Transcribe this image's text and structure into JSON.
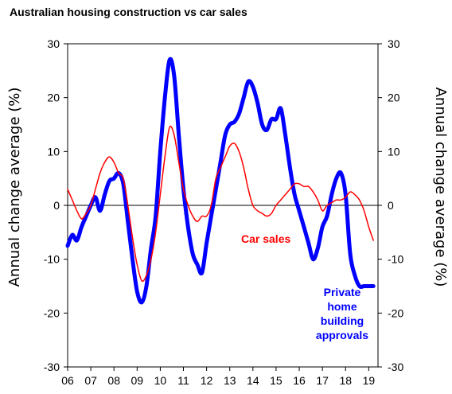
{
  "chart_data": {
    "type": "line",
    "title": "Australian housing construction vs car sales",
    "ylabel_left": "Annual change average (%)",
    "ylabel_right": "Annual change average (%)",
    "ylim": [
      -30,
      30
    ],
    "xlim": [
      2006,
      2019.4
    ],
    "y_ticks": [
      30,
      20,
      10,
      0,
      -10,
      -20,
      -30
    ],
    "x_tick_labels": [
      "06",
      "07",
      "08",
      "09",
      "10",
      "11",
      "12",
      "13",
      "14",
      "15",
      "16",
      "17",
      "18",
      "19"
    ],
    "grid": false,
    "annotations": [
      {
        "text": "Car sales",
        "color": "#ff0000",
        "lines": [
          "Car sales"
        ]
      },
      {
        "text": "Private home building approvals",
        "color": "#0000ff",
        "lines": [
          "Private",
          "home",
          "building",
          "approvals"
        ]
      }
    ],
    "series": [
      {
        "name": "Private home building approvals",
        "color": "#0000ff",
        "x": [
          2006.0,
          2006.2,
          2006.4,
          2006.6,
          2006.8,
          2007.0,
          2007.2,
          2007.4,
          2007.6,
          2007.8,
          2008.0,
          2008.2,
          2008.4,
          2008.6,
          2008.8,
          2009.0,
          2009.2,
          2009.4,
          2009.6,
          2009.8,
          2010.0,
          2010.2,
          2010.4,
          2010.6,
          2010.8,
          2011.0,
          2011.2,
          2011.4,
          2011.6,
          2011.8,
          2012.0,
          2012.2,
          2012.4,
          2012.6,
          2012.8,
          2013.0,
          2013.2,
          2013.4,
          2013.6,
          2013.8,
          2014.0,
          2014.2,
          2014.4,
          2014.6,
          2014.8,
          2015.0,
          2015.2,
          2015.4,
          2015.6,
          2015.8,
          2016.0,
          2016.2,
          2016.4,
          2016.6,
          2016.8,
          2017.0,
          2017.2,
          2017.4,
          2017.6,
          2017.8,
          2018.0,
          2018.2,
          2018.4,
          2018.6,
          2018.8,
          2019.0,
          2019.2
        ],
        "y": [
          -7.5,
          -5.5,
          -6.5,
          -4,
          -2,
          0,
          1.5,
          -1,
          2,
          4.5,
          5,
          6,
          4,
          -3,
          -10,
          -16,
          -18,
          -15,
          -8,
          -2,
          10,
          20,
          27,
          24,
          13,
          3,
          -4,
          -9,
          -11,
          -12.5,
          -7,
          -2,
          3,
          8,
          13,
          15,
          15.5,
          17,
          20,
          23,
          22,
          19,
          15,
          14,
          16,
          16,
          18,
          13,
          7,
          2,
          -1,
          -4,
          -7,
          -10,
          -8,
          -4,
          -2,
          2,
          5,
          6,
          2,
          -9,
          -13,
          -15,
          -15,
          -15,
          -15
        ]
      },
      {
        "name": "Car sales",
        "color": "#ff0000",
        "x": [
          2006.0,
          2006.2,
          2006.4,
          2006.6,
          2006.8,
          2007.0,
          2007.2,
          2007.4,
          2007.6,
          2007.8,
          2008.0,
          2008.2,
          2008.4,
          2008.6,
          2008.8,
          2009.0,
          2009.2,
          2009.4,
          2009.6,
          2009.8,
          2010.0,
          2010.2,
          2010.4,
          2010.6,
          2010.8,
          2011.0,
          2011.2,
          2011.4,
          2011.6,
          2011.8,
          2012.0,
          2012.2,
          2012.4,
          2012.6,
          2012.8,
          2013.0,
          2013.2,
          2013.4,
          2013.6,
          2013.8,
          2014.0,
          2014.2,
          2014.4,
          2014.6,
          2014.8,
          2015.0,
          2015.2,
          2015.4,
          2015.6,
          2015.8,
          2016.0,
          2016.2,
          2016.4,
          2016.6,
          2016.8,
          2017.0,
          2017.2,
          2017.4,
          2017.6,
          2017.8,
          2018.0,
          2018.2,
          2018.4,
          2018.6,
          2018.8,
          2019.0,
          2019.2
        ],
        "y": [
          3,
          1,
          -1,
          -2.5,
          -1.5,
          0,
          3,
          6,
          8,
          9,
          8,
          6,
          5,
          0,
          -6,
          -11,
          -14,
          -13,
          -10,
          -5,
          2,
          9,
          14.5,
          13,
          8,
          3,
          0,
          -2,
          -3,
          -2,
          -2,
          0,
          5,
          7,
          9,
          11,
          11.5,
          10,
          7,
          3,
          0,
          -1,
          -1.5,
          -2,
          -1.5,
          0,
          1,
          2,
          3,
          4,
          4,
          3.5,
          3.5,
          2.5,
          1,
          -1,
          0,
          0.5,
          1,
          1,
          1.5,
          2.5,
          2,
          1,
          -1,
          -4,
          -6.5
        ]
      }
    ]
  }
}
